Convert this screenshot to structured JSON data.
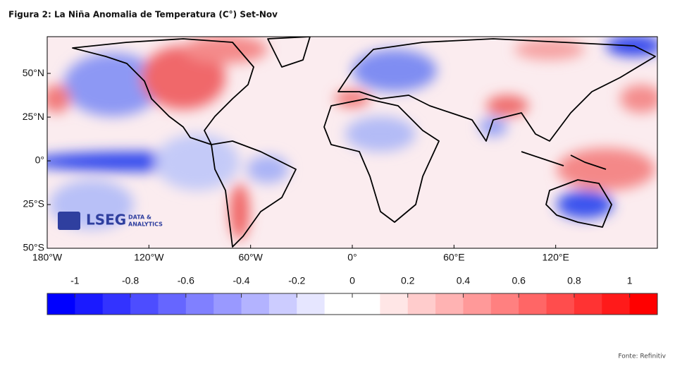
{
  "title": "Figura 2: La Niña Anomalia de Temperatura (C°) Set-Nov",
  "map": {
    "xlim": [
      -180,
      180
    ],
    "ylim": [
      -50,
      71
    ],
    "xticks": [
      {
        "value": -180,
        "label": "180°W"
      },
      {
        "value": -120,
        "label": "120°W"
      },
      {
        "value": -60,
        "label": "60°W"
      },
      {
        "value": 0,
        "label": "0°"
      },
      {
        "value": 60,
        "label": "60°E"
      },
      {
        "value": 120,
        "label": "120°E"
      }
    ],
    "yticks": [
      {
        "value": 50,
        "label": "50°N"
      },
      {
        "value": 25,
        "label": "25°N"
      },
      {
        "value": 0,
        "label": "0°"
      },
      {
        "value": -25,
        "label": "25°S"
      },
      {
        "value": -50,
        "label": "50°S"
      }
    ]
  },
  "colorbar": {
    "lim": [
      -1.1,
      1.1
    ],
    "bins": 22,
    "low_color": "#0000ff",
    "mid_color": "#ffffff",
    "high_color": "#ff0000",
    "ticks": [
      -1,
      -0.8,
      -0.6,
      -0.4,
      -0.2,
      0,
      0.2,
      0.4,
      0.6,
      0.8,
      1
    ]
  },
  "logo": {
    "name": "LSEG",
    "line1": "DATA &",
    "line2": "ANALYTICS"
  },
  "source": "Fonte: Refinitiv"
}
